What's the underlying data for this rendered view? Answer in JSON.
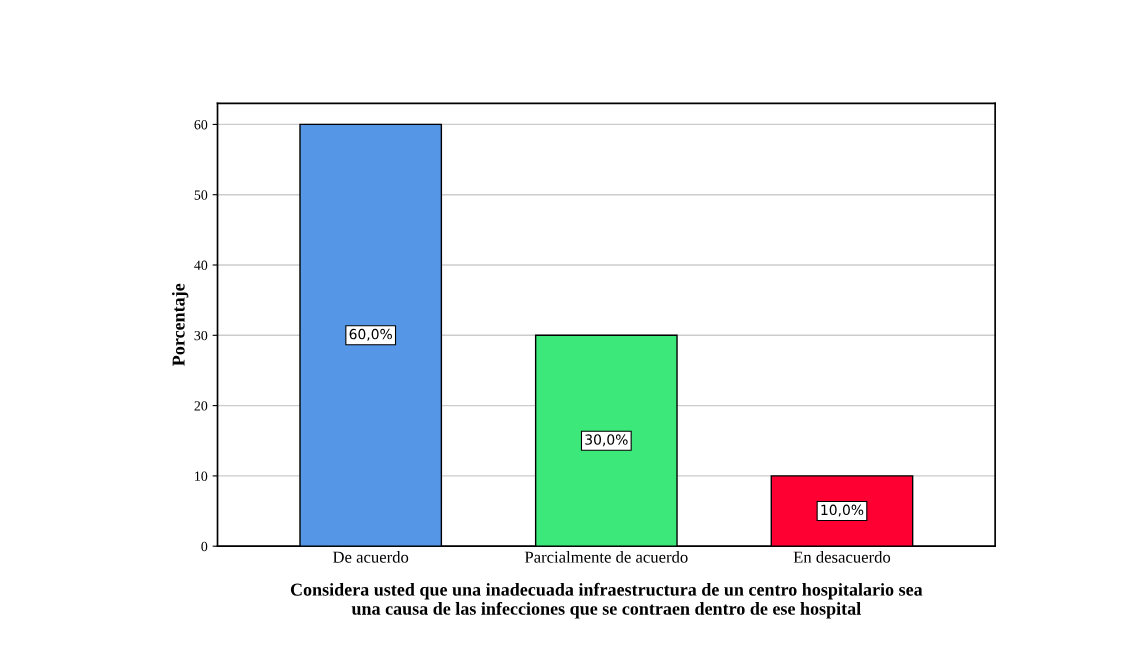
{
  "chart_data": {
    "type": "bar",
    "xlabel": "Considera usted que una inadecuada infraestructura de un centro hospitalario sea\nuna causa de las infecciones que se contraen dentro de ese hospital",
    "ylabel": "Porcentaje",
    "categories": [
      "De acuerdo",
      "Parcialmente de acuerdo",
      "En desacuerdo"
    ],
    "values": [
      60,
      30,
      10
    ],
    "colors": [
      "#5596e6",
      "#3de87a",
      "#ff0033"
    ],
    "value_labels": [
      "60,0%",
      "30,0%",
      "10,0%"
    ],
    "ylim": [
      0,
      63
    ],
    "yticks": [
      0,
      10,
      20,
      30,
      40,
      50,
      60
    ],
    "grid": "y"
  }
}
